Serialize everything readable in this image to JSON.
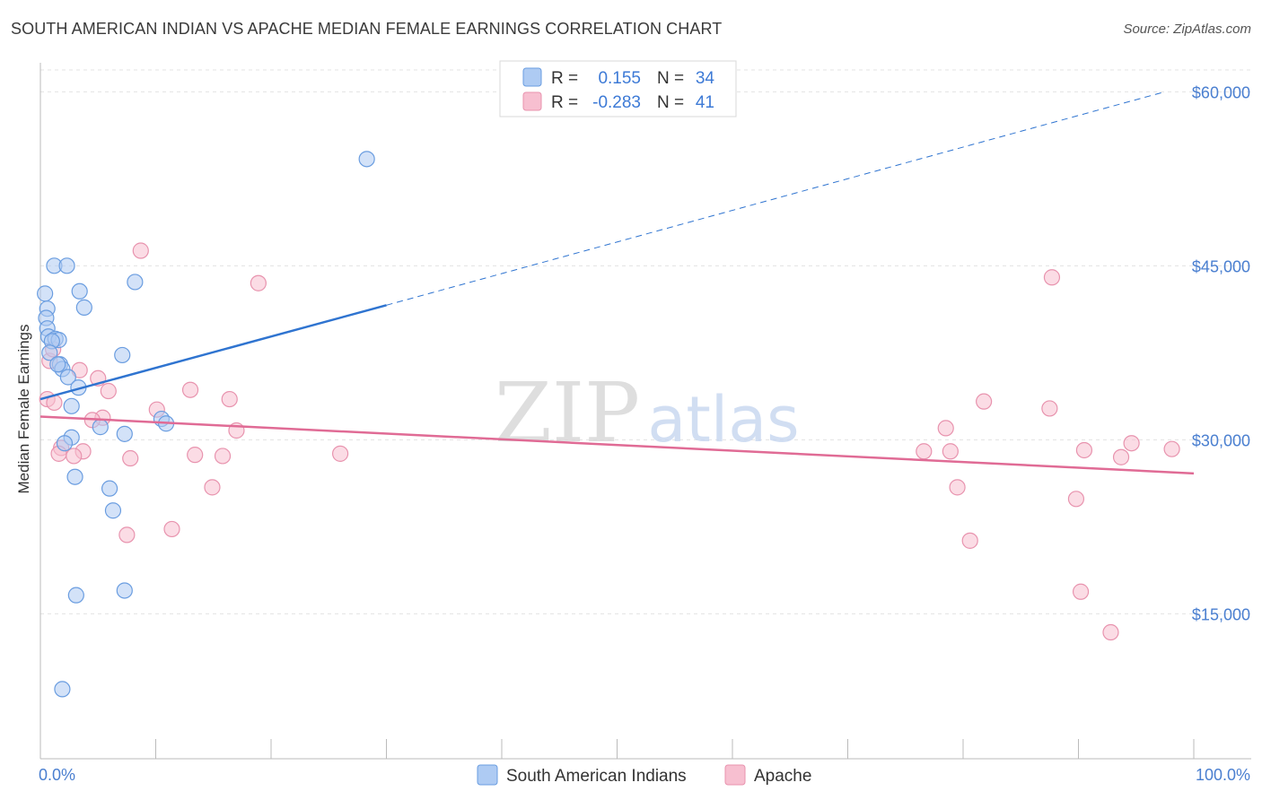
{
  "title": "SOUTH AMERICAN INDIAN VS APACHE MEDIAN FEMALE EARNINGS CORRELATION CHART",
  "source": "Source: ZipAtlas.com",
  "watermark": {
    "zip": "ZIP",
    "atlas": "atlas"
  },
  "colors": {
    "blue_fill": "#aecbf3",
    "blue_stroke": "#6a9de0",
    "blue_line": "#2f74d0",
    "pink_fill": "#f7bfd0",
    "pink_stroke": "#e893ae",
    "pink_line": "#e06b95",
    "grid": "#e3e3e3",
    "axis_text": "#4a7fd0"
  },
  "legend": {
    "r_label": "R =",
    "n_label": "N =",
    "rows": [
      {
        "series": "South American Indians",
        "r": "0.155",
        "n": "34"
      },
      {
        "series": "Apache",
        "r": "-0.283",
        "n": "41"
      }
    ]
  },
  "chart_data": {
    "type": "scatter",
    "title": "SOUTH AMERICAN INDIAN VS APACHE MEDIAN FEMALE EARNINGS CORRELATION CHART",
    "xlabel": "",
    "ylabel": "Median Female Earnings",
    "xlim": [
      0,
      100
    ],
    "ylim": [
      2500,
      62500
    ],
    "x_tick_labels": [
      "0.0%",
      "100.0%"
    ],
    "y_ticks": [
      15000,
      30000,
      45000,
      60000
    ],
    "y_tick_labels": [
      "$15,000",
      "$30,000",
      "$45,000",
      "$60,000"
    ],
    "grid": true,
    "series": [
      {
        "name": "South American Indians",
        "color": "blue",
        "points": [
          [
            28.3,
            54200
          ],
          [
            1.2,
            45000
          ],
          [
            2.3,
            45000
          ],
          [
            0.4,
            42600
          ],
          [
            3.4,
            42800
          ],
          [
            8.2,
            43600
          ],
          [
            0.6,
            41300
          ],
          [
            3.8,
            41400
          ],
          [
            0.5,
            40500
          ],
          [
            0.6,
            39600
          ],
          [
            0.7,
            38900
          ],
          [
            1.3,
            38700
          ],
          [
            1.6,
            38600
          ],
          [
            1.0,
            38500
          ],
          [
            0.8,
            37500
          ],
          [
            7.1,
            37300
          ],
          [
            1.7,
            36500
          ],
          [
            1.9,
            36100
          ],
          [
            1.5,
            36500
          ],
          [
            2.4,
            35400
          ],
          [
            3.3,
            34500
          ],
          [
            2.7,
            32900
          ],
          [
            10.5,
            31800
          ],
          [
            10.9,
            31400
          ],
          [
            5.2,
            31100
          ],
          [
            7.3,
            30500
          ],
          [
            2.7,
            30200
          ],
          [
            2.1,
            29700
          ],
          [
            3.0,
            26800
          ],
          [
            6.0,
            25800
          ],
          [
            6.3,
            23900
          ],
          [
            3.1,
            16600
          ],
          [
            7.3,
            17000
          ],
          [
            1.9,
            8500
          ]
        ]
      },
      {
        "name": "Apache",
        "color": "pink",
        "points": [
          [
            8.7,
            46300
          ],
          [
            18.9,
            43500
          ],
          [
            87.7,
            44000
          ],
          [
            3.4,
            36000
          ],
          [
            5.0,
            35300
          ],
          [
            0.8,
            36800
          ],
          [
            1.1,
            37800
          ],
          [
            5.9,
            34200
          ],
          [
            13.0,
            34300
          ],
          [
            16.4,
            33500
          ],
          [
            0.6,
            33500
          ],
          [
            1.2,
            33200
          ],
          [
            81.8,
            33300
          ],
          [
            87.5,
            32700
          ],
          [
            10.1,
            32600
          ],
          [
            5.4,
            31900
          ],
          [
            4.5,
            31700
          ],
          [
            17.0,
            30800
          ],
          [
            78.5,
            31000
          ],
          [
            1.8,
            29300
          ],
          [
            3.7,
            29000
          ],
          [
            1.6,
            28800
          ],
          [
            2.9,
            28600
          ],
          [
            7.8,
            28400
          ],
          [
            13.4,
            28700
          ],
          [
            15.8,
            28600
          ],
          [
            26.0,
            28800
          ],
          [
            76.6,
            29000
          ],
          [
            78.9,
            29000
          ],
          [
            90.5,
            29100
          ],
          [
            94.6,
            29700
          ],
          [
            98.1,
            29200
          ],
          [
            93.7,
            28500
          ],
          [
            14.9,
            25900
          ],
          [
            79.5,
            25900
          ],
          [
            89.8,
            24900
          ],
          [
            7.5,
            21800
          ],
          [
            11.4,
            22300
          ],
          [
            80.6,
            21300
          ],
          [
            90.2,
            16900
          ],
          [
            92.8,
            13400
          ]
        ]
      }
    ],
    "trend_lines": [
      {
        "series": "South American Indians",
        "solid_from": [
          0,
          33500
        ],
        "solid_to": [
          30,
          41600
        ],
        "dashed_to": [
          97.5,
          60000
        ]
      },
      {
        "series": "Apache",
        "from": [
          0,
          32000
        ],
        "to": [
          100,
          27100
        ]
      }
    ]
  }
}
